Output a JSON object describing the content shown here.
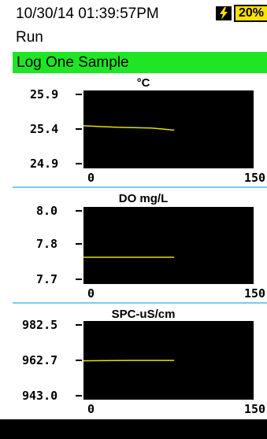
{
  "status": {
    "datetime": "10/30/14 01:39:57PM",
    "battery": "20%",
    "power_icon": "lightning-bolt",
    "battery_color": "#ffe000"
  },
  "mode": "Run",
  "banner": {
    "title": "Log One Sample",
    "color": "#1ee624"
  },
  "charts": [
    {
      "unit": "°C",
      "y_ticks": [
        "25.9",
        "25.4",
        "24.9"
      ],
      "x_ticks": [
        "0",
        "150"
      ]
    },
    {
      "unit": "DO mg/L",
      "y_ticks": [
        "8.0",
        "7.8",
        "7.7"
      ],
      "x_ticks": [
        "0",
        "150"
      ]
    },
    {
      "unit": "SPC-uS/cm",
      "y_ticks": [
        "982.5",
        "962.7",
        "943.0"
      ],
      "x_ticks": [
        "0",
        "150"
      ]
    }
  ],
  "chart_data": [
    {
      "type": "line",
      "title": "°C",
      "xlim": [
        0,
        150
      ],
      "ylim": [
        24.9,
        25.9
      ],
      "series": [
        {
          "x": [
            0,
            30,
            60,
            80
          ],
          "y": [
            25.45,
            25.43,
            25.42,
            25.39
          ]
        }
      ],
      "line_color": "#e4e000",
      "background": "#000000"
    },
    {
      "type": "line",
      "title": "DO mg/L",
      "xlim": [
        0,
        150
      ],
      "ylim": [
        7.7,
        8.0
      ],
      "series": [
        {
          "x": [
            0,
            40,
            80
          ],
          "y": [
            7.8,
            7.8,
            7.8
          ]
        }
      ],
      "line_color": "#e4e000",
      "background": "#000000"
    },
    {
      "type": "line",
      "title": "SPC-uS/cm",
      "xlim": [
        0,
        150
      ],
      "ylim": [
        943.0,
        982.5
      ],
      "series": [
        {
          "x": [
            0,
            40,
            80
          ],
          "y": [
            962.5,
            962.7,
            962.7
          ]
        }
      ],
      "line_color": "#e4e000",
      "background": "#000000"
    }
  ]
}
